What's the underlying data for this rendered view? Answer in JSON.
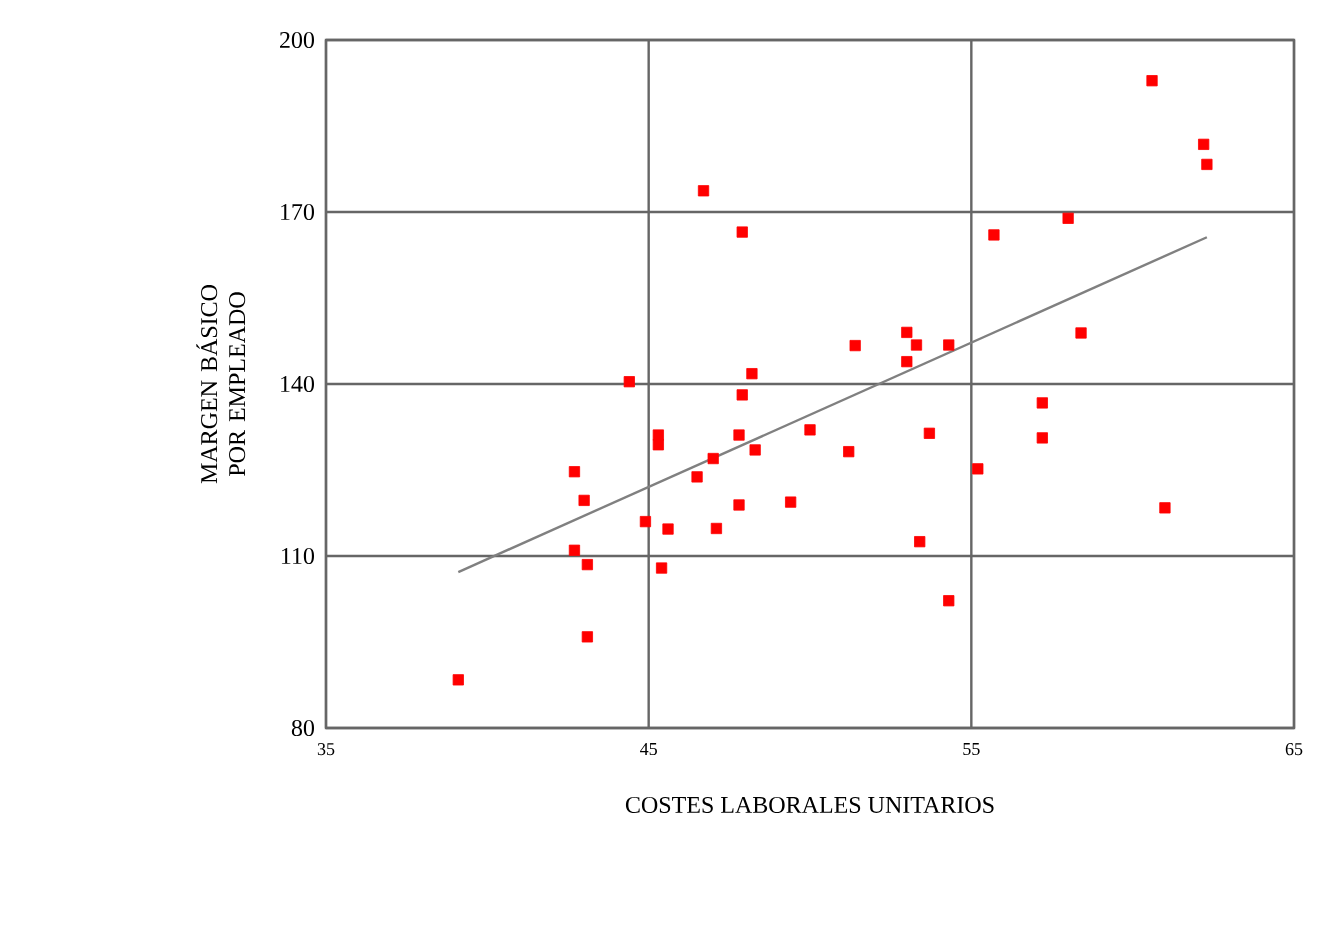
{
  "chart_data": {
    "type": "scatter",
    "xlabel": "COSTES LABORALES UNITARIOS",
    "ylabel": "MARGEN BÁSICO POR EMPLEADO",
    "xlim": [
      35,
      65
    ],
    "ylim": [
      80,
      200
    ],
    "xticks": [
      35,
      45,
      55,
      65
    ],
    "yticks": [
      80,
      110,
      140,
      170,
      200
    ],
    "grid": true,
    "marker": "square",
    "series": [
      {
        "color": "#ff0000",
        "x": [
          46.7,
          47.9,
          44.4,
          48.2,
          47.9,
          45.3,
          45.3,
          47.8,
          48.3,
          50.0,
          42.7,
          47.0,
          46.5,
          43.0,
          47.8,
          49.4,
          44.9,
          45.6,
          47.1,
          42.7,
          43.1,
          45.4,
          43.1,
          39.1,
          60.6,
          62.2,
          62.3,
          58.0,
          55.7,
          58.4,
          53.0,
          53.3,
          51.4,
          54.3,
          53.0,
          57.2,
          53.7,
          57.2,
          51.2,
          55.2,
          61.0,
          53.4,
          54.3
        ],
        "values": [
          173.7,
          166.5,
          140.4,
          141.8,
          138.1,
          131.1,
          129.4,
          131.1,
          128.5,
          132.0,
          124.7,
          127.0,
          123.8,
          119.7,
          118.9,
          119.4,
          116.0,
          114.7,
          114.8,
          111.0,
          108.5,
          107.9,
          95.9,
          88.4,
          192.9,
          181.8,
          178.3,
          168.9,
          166.0,
          148.9,
          149.0,
          146.8,
          146.7,
          146.8,
          143.9,
          136.7,
          131.4,
          130.6,
          128.2,
          125.2,
          118.4,
          112.5,
          102.2
        ]
      },
      {
        "type": "line",
        "marker": "none",
        "color": "#808080",
        "x": [
          39.1,
          62.3
        ],
        "values": [
          107.2,
          165.6
        ]
      }
    ]
  }
}
